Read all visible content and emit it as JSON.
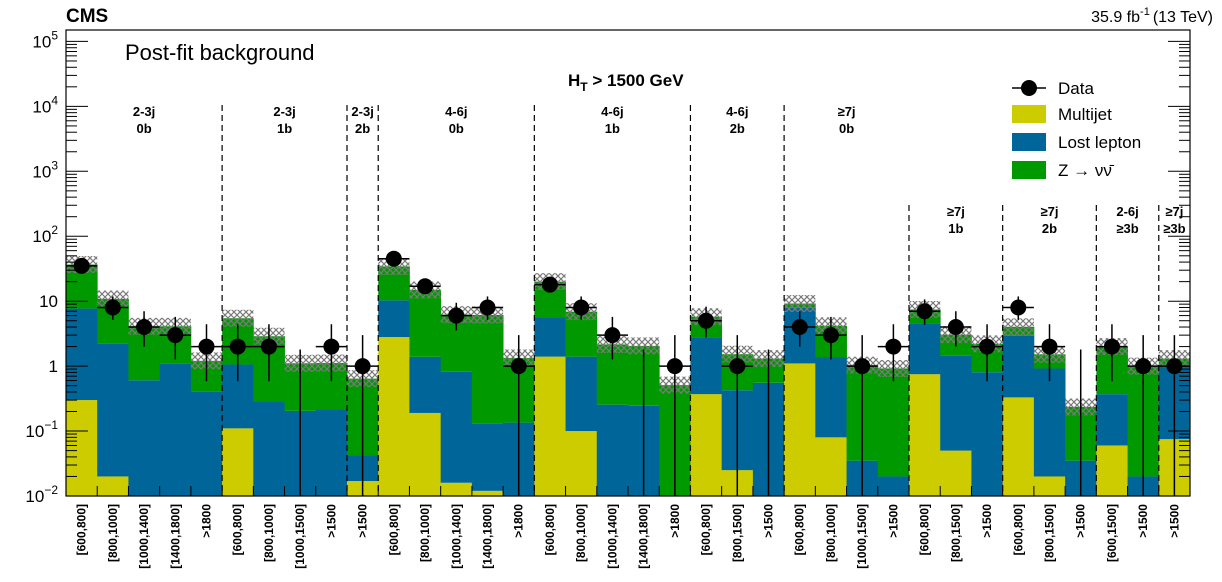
{
  "header": {
    "experiment": "CMS",
    "lumi_main": "35.9 fb",
    "lumi_sup": "-1",
    "lumi_energy": "(13 TeV)",
    "subtitle": "Post-fit background",
    "ht_cut_prefix": "H",
    "ht_cut_sub": "T",
    "ht_cut_suffix": " > 1500 GeV"
  },
  "chart_data": {
    "type": "bar",
    "stacked": true,
    "yscale": "log",
    "ylim": [
      0.01,
      150000
    ],
    "yticks": [
      {
        "v": 100000,
        "base": "10",
        "exp": "5"
      },
      {
        "v": 10000,
        "base": "10",
        "exp": "4"
      },
      {
        "v": 1000,
        "base": "10",
        "exp": "3"
      },
      {
        "v": 100,
        "base": "10",
        "exp": "2"
      },
      {
        "v": 10,
        "base": "10",
        "exp": ""
      },
      {
        "v": 1,
        "base": "1",
        "exp": ""
      },
      {
        "v": 0.1,
        "base": "10",
        "exp": "−1"
      },
      {
        "v": 0.01,
        "base": "10",
        "exp": "−2"
      }
    ],
    "categories": [
      "[600,800]",
      "[800,1000]",
      "[1000,1400]",
      "[1400,1800]",
      ">1800",
      "[600,800]",
      "[800,1000]",
      "[1000,1500]",
      ">1500",
      ">1500",
      "[600,800]",
      "[800,1000]",
      "[1000,1400]",
      "[1400,1800]",
      ">1800",
      "[600,800]",
      "[800,1000]",
      "[1000,1400]",
      "[1400,1800]",
      ">1800",
      "[600,800]",
      "[800,1500]",
      ">1500",
      "[600,800]",
      "[800,1000]",
      "[1000,1500]",
      ">1500",
      "[600,800]",
      "[800,1500]",
      ">1500",
      "[600,800]",
      "[800,1500]",
      ">1500",
      "[600,1500]",
      ">1500",
      ">1500"
    ],
    "series": [
      {
        "name": "Multijet",
        "color": "#cccc00",
        "values": [
          0.3,
          0.02,
          0.005,
          0.005,
          0.005,
          0.11,
          0.005,
          0.005,
          0.005,
          0.017,
          2.8,
          0.19,
          0.016,
          0.012,
          0.005,
          1.4,
          0.1,
          0.005,
          0.005,
          0.005,
          0.37,
          0.025,
          0.005,
          1.1,
          0.08,
          0.005,
          0.005,
          0.75,
          0.05,
          0.005,
          0.33,
          0.02,
          0.005,
          0.06,
          0.005,
          0.075
        ]
      },
      {
        "name": "Lost lepton",
        "color": "#006699",
        "values": [
          7.4,
          2.2,
          0.6,
          1.1,
          0.4,
          0.95,
          0.28,
          0.2,
          0.21,
          0.025,
          7.5,
          1.2,
          0.8,
          0.12,
          0.13,
          4.2,
          1.3,
          0.25,
          0.24,
          0.005,
          2.4,
          0.4,
          0.55,
          6.8,
          1.3,
          0.03,
          0.015,
          3.8,
          1.4,
          0.8,
          2.6,
          0.9,
          0.03,
          0.31,
          0.015,
          0.93
        ]
      },
      {
        "name": "Z → νν̄",
        "color": "#009900",
        "values": [
          29,
          8.6,
          3.5,
          3,
          0.8,
          4.4,
          2.6,
          0.9,
          0.9,
          0.6,
          24,
          13.5,
          5.4,
          6,
          1.2,
          14.4,
          5.5,
          1.9,
          1.8,
          0.5,
          3,
          1.1,
          0.75,
          1.3,
          2.8,
          1,
          0.9,
          2.9,
          1.6,
          1.4,
          1.1,
          0.6,
          0.2,
          1.63,
          0.98,
          0.3
        ]
      }
    ],
    "data": {
      "name": "Data",
      "values": [
        35,
        8,
        4,
        3,
        2,
        2,
        2,
        null,
        2,
        1,
        45,
        17,
        6,
        8,
        1,
        18,
        8,
        3,
        null,
        1,
        5,
        1,
        null,
        4,
        3,
        1,
        2,
        7,
        4,
        2,
        8,
        2,
        null,
        2,
        1,
        1
      ]
    },
    "regions": [
      {
        "label": [
          "2-3j",
          "0b"
        ],
        "start": 0,
        "end": 5
      },
      {
        "label": [
          "2-3j",
          "1b"
        ],
        "start": 5,
        "end": 9
      },
      {
        "label": [
          "2-3j",
          "2b"
        ],
        "start": 9,
        "end": 10
      },
      {
        "label": [
          "4-6j",
          "0b"
        ],
        "start": 10,
        "end": 15
      },
      {
        "label": [
          "4-6j",
          "1b"
        ],
        "start": 15,
        "end": 20
      },
      {
        "label": [
          "4-6j",
          "2b"
        ],
        "start": 20,
        "end": 23
      },
      {
        "label": [
          "≥7j",
          "0b"
        ],
        "start": 23,
        "end": 27
      },
      {
        "label": [
          "≥7j",
          "1b"
        ],
        "start": 27,
        "end": 30
      },
      {
        "label": [
          "≥7j",
          "2b"
        ],
        "start": 30,
        "end": 33
      },
      {
        "label": [
          "2-6j",
          "≥3b"
        ],
        "start": 33,
        "end": 35
      },
      {
        "label": [
          "≥7j",
          "≥3b"
        ],
        "start": 35,
        "end": 36
      }
    ],
    "legend": {
      "position": "top-right"
    }
  }
}
